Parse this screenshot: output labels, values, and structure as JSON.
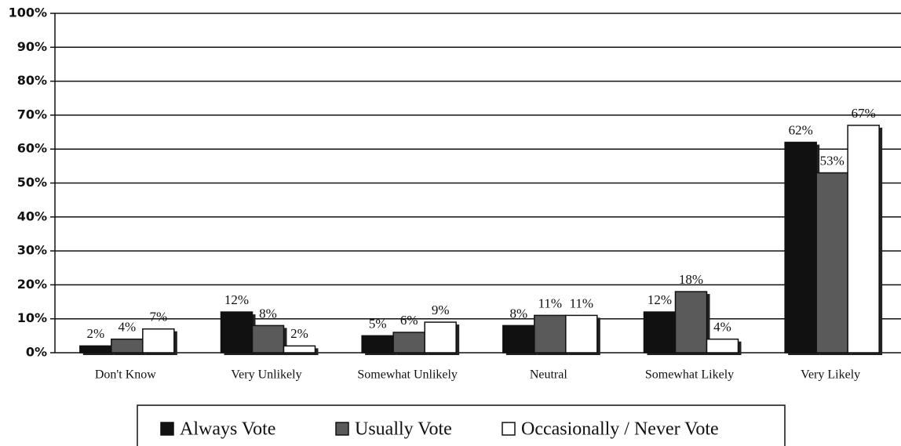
{
  "chart_data": {
    "type": "bar",
    "categories": [
      "Don't Know",
      "Very Unlikely",
      "Somewhat Unlikely",
      "Neutral",
      "Somewhat Likely",
      "Very Likely"
    ],
    "series": [
      {
        "name": "Always Vote",
        "color": "#111111",
        "values": [
          2,
          12,
          5,
          8,
          12,
          62
        ],
        "value_labels": [
          "2%",
          "12%",
          "5%",
          "8%",
          "12%",
          "62%"
        ]
      },
      {
        "name": "Usually Vote",
        "color": "#5a5a5a",
        "values": [
          4,
          8,
          6,
          11,
          18,
          53
        ],
        "value_labels": [
          "4%",
          "8%",
          "6%",
          "11%",
          "18%",
          "53%"
        ]
      },
      {
        "name": "Occasionally / Never Vote",
        "color": "#ffffff",
        "values": [
          7,
          2,
          9,
          11,
          4,
          67
        ],
        "value_labels": [
          "7%",
          "2%",
          "9%",
          "11%",
          "4%",
          "67%"
        ]
      }
    ],
    "ylim": [
      0,
      100
    ],
    "yticks": [
      {
        "value": 0,
        "label": "0%"
      },
      {
        "value": 10,
        "label": "10%"
      },
      {
        "value": 20,
        "label": "20%"
      },
      {
        "value": 30,
        "label": "30%"
      },
      {
        "value": 40,
        "label": "40%"
      },
      {
        "value": 50,
        "label": "50%"
      },
      {
        "value": 60,
        "label": "60%"
      },
      {
        "value": 70,
        "label": "70%"
      },
      {
        "value": 80,
        "label": "80%"
      },
      {
        "value": 90,
        "label": "90%"
      },
      {
        "value": 100,
        "label": "100%"
      }
    ],
    "grid": true,
    "legend": "bottom"
  }
}
